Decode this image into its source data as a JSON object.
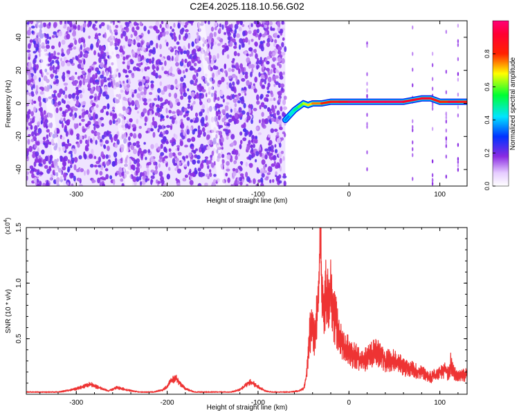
{
  "title": "C2E4.2025.118.10.56.G02",
  "colors": {
    "snr_line": "#ee3333",
    "scatter_dots": "#6a10e0",
    "axis": "#000000"
  },
  "chart_data": [
    {
      "type": "heatmap",
      "xlabel": "Height of straight line (km)",
      "ylabel": "Frequency (Hz)",
      "xlim": [
        -355,
        130
      ],
      "ylim": [
        -50,
        50
      ],
      "x_ticks": [
        -300,
        -200,
        -100,
        0,
        100
      ],
      "x_tick_labels": [
        "-300",
        "-200",
        "-100",
        "0",
        "100"
      ],
      "y_ticks": [
        -40,
        -20,
        0,
        20,
        40
      ],
      "y_tick_labels": [
        "-40",
        "-20",
        "0",
        "20",
        "40"
      ],
      "colorbar": {
        "label": "Normalized spectral amplitude",
        "range": [
          0,
          1
        ],
        "ticks": [
          0.0,
          0.2,
          0.4,
          0.6,
          0.8
        ],
        "tick_labels": [
          "0.0",
          "0.2",
          "0.4",
          "0.6",
          "0.8"
        ],
        "colormap": "rainbow (white-purple-blue-cyan-green-yellow-red-magenta)"
      },
      "noise_region_x": [
        -355,
        -70
      ],
      "signal_ridge": {
        "x": [
          -70,
          -65,
          -60,
          -55,
          -50,
          -45,
          -40,
          -30,
          -20,
          -10,
          0,
          20,
          40,
          60,
          70,
          80,
          90,
          100,
          110,
          120,
          130
        ],
        "frequency": [
          -10,
          -7,
          -4,
          -2,
          0,
          -1,
          0,
          0,
          1,
          1,
          1,
          1,
          1,
          1,
          2,
          3,
          3,
          1,
          1,
          1,
          1
        ],
        "amplitude": [
          0.35,
          0.45,
          0.5,
          0.6,
          0.65,
          0.7,
          0.75,
          0.8,
          0.85,
          0.9,
          0.95,
          0.95,
          0.95,
          0.9,
          0.9,
          0.9,
          0.85,
          0.8,
          0.9,
          0.85,
          0.8
        ]
      }
    },
    {
      "type": "line",
      "xlabel": "Height of straight line (km)",
      "ylabel": "SNR (10 * v/v)",
      "y_multiplier": "(x10",
      "y_multiplier_exp": "4",
      "y_multiplier_close": ")",
      "xlim": [
        -355,
        130
      ],
      "ylim": [
        0,
        1.5
      ],
      "x_ticks": [
        -300,
        -200,
        -100,
        0,
        100
      ],
      "x_tick_labels": [
        "-300",
        "-200",
        "-100",
        "0",
        "100"
      ],
      "y_ticks": [
        0.5,
        1.0,
        1.5
      ],
      "y_tick_labels": [
        "0.5",
        "1.0",
        "1.5"
      ],
      "series": [
        {
          "x": [
            -355,
            -340,
            -320,
            -305,
            -295,
            -285,
            -275,
            -265,
            -255,
            -245,
            -230,
            -215,
            -205,
            -200,
            -195,
            -190,
            -185,
            -180,
            -170,
            -160,
            -150,
            -140,
            -130,
            -120,
            -112,
            -108,
            -100,
            -92,
            -85,
            -75,
            -65,
            -55,
            -50,
            -47,
            -45,
            -43,
            -40,
            -38,
            -35,
            -33,
            -32,
            -31,
            -30,
            -29,
            -28,
            -25,
            -22,
            -20,
            -18,
            -16,
            -14,
            -12,
            -10,
            -5,
            0,
            5,
            10,
            15,
            20,
            25,
            30,
            35,
            40,
            50,
            60,
            70,
            80,
            90,
            100,
            105,
            110,
            112,
            115,
            120,
            125,
            130
          ],
          "y": [
            0.02,
            0.02,
            0.02,
            0.04,
            0.06,
            0.09,
            0.06,
            0.03,
            0.06,
            0.04,
            0.02,
            0.02,
            0.04,
            0.07,
            0.13,
            0.14,
            0.09,
            0.05,
            0.02,
            0.02,
            0.02,
            0.02,
            0.02,
            0.04,
            0.09,
            0.11,
            0.07,
            0.03,
            0.02,
            0.02,
            0.02,
            0.03,
            0.05,
            0.15,
            0.35,
            0.55,
            0.6,
            0.5,
            0.75,
            0.95,
            1.25,
            1.5,
            0.95,
            0.9,
            0.7,
            0.95,
            0.85,
            1.05,
            0.75,
            0.7,
            0.65,
            0.6,
            0.55,
            0.42,
            0.4,
            0.35,
            0.33,
            0.3,
            0.32,
            0.35,
            0.4,
            0.35,
            0.3,
            0.3,
            0.25,
            0.22,
            0.2,
            0.15,
            0.2,
            0.22,
            0.18,
            0.28,
            0.2,
            0.16,
            0.17,
            0.18
          ]
        }
      ]
    }
  ]
}
